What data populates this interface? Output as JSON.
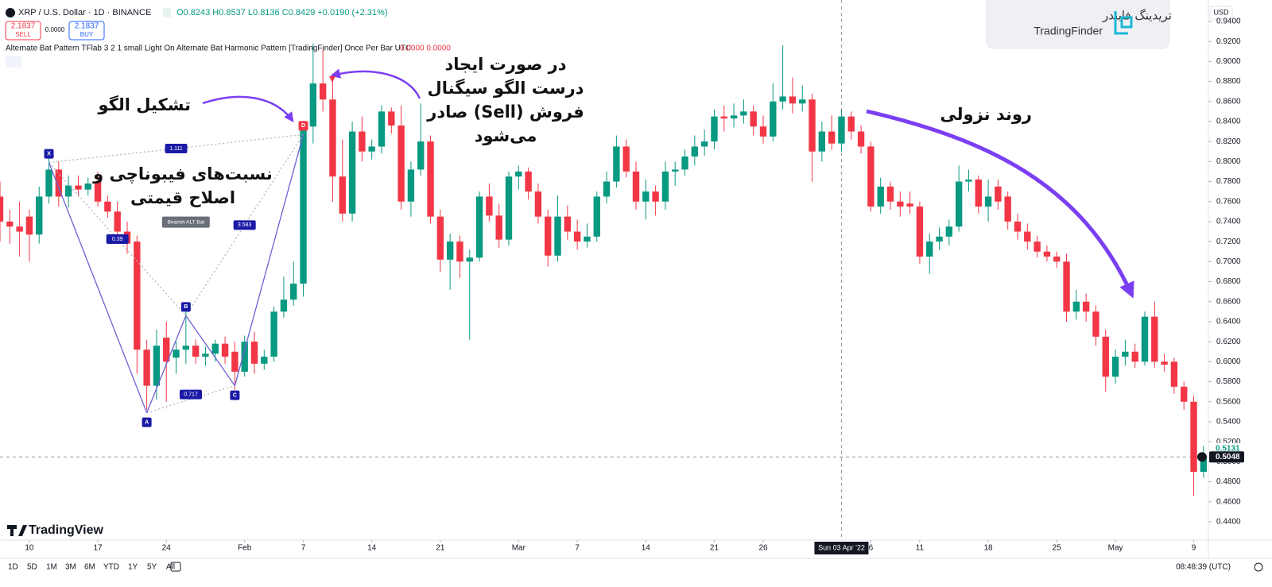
{
  "header": {
    "symbol": "XRP / U.S. Dollar · 1D · BINANCE",
    "ohlc": "O0.8243 H0.8537 L0.8136 C0.8429 +0.0190 (+2.31%)",
    "sell_price": "2.1837",
    "sell": "SELL",
    "spread": "0.0000",
    "buy_price": "2.1837",
    "buy": "BUY",
    "indicator": "Alternate Bat Pattern TFlab 3 2 1 small Light On Alternate Bat Harmonic Pattern [TradingFinder] Once Per Bar UTC",
    "indicator_values": "0.0000 0.0000"
  },
  "logo": {
    "persian": "تریدینگ فایندر",
    "latin": "TradingFinder"
  },
  "watermark": "TradingView",
  "annotations": [
    {
      "lines": [
        "تشکیل الگو"
      ]
    },
    {
      "lines": [
        "نسبت‌های فیبوناچی و",
        "اصلاح قیمتی"
      ]
    },
    {
      "lines": [
        "در صورت ایجاد",
        "درست الگو سیگنال",
        "فروش (Sell) صادر",
        "می‌شود"
      ]
    },
    {
      "lines": [
        "روند نزولی"
      ]
    }
  ],
  "toolbar": {
    "ranges": [
      "1D",
      "5D",
      "1M",
      "3M",
      "6M",
      "YTD",
      "1Y",
      "5Y",
      "All"
    ],
    "clock": "08:48:39 (UTC)"
  },
  "chart_data": {
    "type": "candlestick",
    "currency": "USD",
    "up_color": "#089981",
    "down_color": "#f23645",
    "grid": false,
    "xlim": [
      0,
      123.5
    ],
    "ylim": [
      0.4217,
      0.9614
    ],
    "xticks": [
      {
        "value": 3,
        "label": "10"
      },
      {
        "value": 10,
        "label": "17"
      },
      {
        "value": 17,
        "label": "24"
      },
      {
        "value": 25,
        "label": "Feb"
      },
      {
        "value": 31,
        "label": "7"
      },
      {
        "value": 38,
        "label": "14"
      },
      {
        "value": 45,
        "label": "21"
      },
      {
        "value": 53,
        "label": "Mar"
      },
      {
        "value": 59,
        "label": "7"
      },
      {
        "value": 66,
        "label": "14"
      },
      {
        "value": 73,
        "label": "21"
      },
      {
        "value": 78,
        "label": "26"
      },
      {
        "value": 89,
        "label": "6"
      },
      {
        "value": 94,
        "label": "11"
      },
      {
        "value": 101,
        "label": "18"
      },
      {
        "value": 108,
        "label": "25"
      },
      {
        "value": 114,
        "label": "May"
      },
      {
        "value": 122,
        "label": "9"
      }
    ],
    "yticks": [
      {
        "value": 0.44,
        "label": "0.4400"
      },
      {
        "value": 0.46,
        "label": "0.4600"
      },
      {
        "value": 0.48,
        "label": "0.4800"
      },
      {
        "value": 0.5,
        "label": "0.5000"
      },
      {
        "value": 0.52,
        "label": "0.5200"
      },
      {
        "value": 0.54,
        "label": "0.5400"
      },
      {
        "value": 0.56,
        "label": "0.5600"
      },
      {
        "value": 0.58,
        "label": "0.5800"
      },
      {
        "value": 0.6,
        "label": "0.6000"
      },
      {
        "value": 0.62,
        "label": "0.6200"
      },
      {
        "value": 0.64,
        "label": "0.6400"
      },
      {
        "value": 0.66,
        "label": "0.6600"
      },
      {
        "value": 0.68,
        "label": "0.6800"
      },
      {
        "value": 0.7,
        "label": "0.7000"
      },
      {
        "value": 0.72,
        "label": "0.7200"
      },
      {
        "value": 0.74,
        "label": "0.7400"
      },
      {
        "value": 0.76,
        "label": "0.7600"
      },
      {
        "value": 0.78,
        "label": "0.7800"
      },
      {
        "value": 0.8,
        "label": "0.8000"
      },
      {
        "value": 0.82,
        "label": "0.8200"
      },
      {
        "value": 0.84,
        "label": "0.8400"
      },
      {
        "value": 0.86,
        "label": "0.8600"
      },
      {
        "value": 0.88,
        "label": "0.8800"
      },
      {
        "value": 0.9,
        "label": "0.9000"
      },
      {
        "value": 0.92,
        "label": "0.9200"
      },
      {
        "value": 0.94,
        "label": "0.9400"
      }
    ],
    "crosshair": {
      "x": 86,
      "label": "Sun 03 Apr '22"
    },
    "prev_price": {
      "value": 0.5131,
      "label": "0.5131"
    },
    "last_price": {
      "value": 0.5048,
      "label": "0.5048"
    },
    "ohlc": [
      [
        0.765,
        0.78,
        0.72,
        0.74
      ],
      [
        0.74,
        0.752,
        0.718,
        0.735
      ],
      [
        0.735,
        0.76,
        0.705,
        0.73
      ],
      [
        0.745,
        0.752,
        0.7,
        0.727
      ],
      [
        0.727,
        0.775,
        0.718,
        0.765
      ],
      [
        0.765,
        0.812,
        0.758,
        0.792
      ],
      [
        0.792,
        0.8,
        0.755,
        0.765
      ],
      [
        0.765,
        0.786,
        0.754,
        0.776
      ],
      [
        0.776,
        0.786,
        0.765,
        0.772
      ],
      [
        0.772,
        0.784,
        0.766,
        0.778
      ],
      [
        0.78,
        0.79,
        0.755,
        0.76
      ],
      [
        0.76,
        0.766,
        0.744,
        0.75
      ],
      [
        0.75,
        0.76,
        0.718,
        0.73
      ],
      [
        0.73,
        0.74,
        0.708,
        0.718
      ],
      [
        0.72,
        0.726,
        0.588,
        0.612
      ],
      [
        0.612,
        0.622,
        0.552,
        0.576
      ],
      [
        0.576,
        0.632,
        0.562,
        0.616
      ],
      [
        0.624,
        0.64,
        0.56,
        0.6
      ],
      [
        0.604,
        0.62,
        0.588,
        0.612
      ],
      [
        0.612,
        0.652,
        0.598,
        0.616
      ],
      [
        0.616,
        0.622,
        0.598,
        0.605
      ],
      [
        0.605,
        0.615,
        0.596,
        0.608
      ],
      [
        0.608,
        0.622,
        0.6,
        0.618
      ],
      [
        0.618,
        0.625,
        0.598,
        0.605
      ],
      [
        0.61,
        0.62,
        0.572,
        0.59
      ],
      [
        0.59,
        0.626,
        0.585,
        0.62
      ],
      [
        0.62,
        0.63,
        0.588,
        0.598
      ],
      [
        0.598,
        0.612,
        0.592,
        0.605
      ],
      [
        0.605,
        0.655,
        0.6,
        0.65
      ],
      [
        0.65,
        0.685,
        0.644,
        0.662
      ],
      [
        0.662,
        0.7,
        0.656,
        0.678
      ],
      [
        0.678,
        0.84,
        0.665,
        0.835
      ],
      [
        0.835,
        0.918,
        0.818,
        0.878
      ],
      [
        0.878,
        0.912,
        0.85,
        0.862
      ],
      [
        0.862,
        0.888,
        0.76,
        0.785
      ],
      [
        0.785,
        0.822,
        0.74,
        0.748
      ],
      [
        0.748,
        0.84,
        0.74,
        0.83
      ],
      [
        0.83,
        0.845,
        0.8,
        0.81
      ],
      [
        0.81,
        0.822,
        0.802,
        0.815
      ],
      [
        0.815,
        0.856,
        0.808,
        0.85
      ],
      [
        0.85,
        0.854,
        0.828,
        0.836
      ],
      [
        0.836,
        0.856,
        0.752,
        0.76
      ],
      [
        0.76,
        0.8,
        0.745,
        0.792
      ],
      [
        0.792,
        0.858,
        0.786,
        0.82
      ],
      [
        0.82,
        0.826,
        0.738,
        0.745
      ],
      [
        0.745,
        0.752,
        0.69,
        0.702
      ],
      [
        0.702,
        0.728,
        0.672,
        0.72
      ],
      [
        0.72,
        0.726,
        0.684,
        0.7
      ],
      [
        0.7,
        0.712,
        0.622,
        0.704
      ],
      [
        0.704,
        0.77,
        0.7,
        0.765
      ],
      [
        0.765,
        0.778,
        0.74,
        0.746
      ],
      [
        0.746,
        0.758,
        0.714,
        0.722
      ],
      [
        0.722,
        0.79,
        0.716,
        0.785
      ],
      [
        0.785,
        0.796,
        0.772,
        0.79
      ],
      [
        0.79,
        0.794,
        0.762,
        0.77
      ],
      [
        0.77,
        0.778,
        0.738,
        0.745
      ],
      [
        0.745,
        0.752,
        0.695,
        0.706
      ],
      [
        0.706,
        0.766,
        0.7,
        0.745
      ],
      [
        0.745,
        0.756,
        0.722,
        0.73
      ],
      [
        0.73,
        0.742,
        0.712,
        0.72
      ],
      [
        0.72,
        0.738,
        0.714,
        0.725
      ],
      [
        0.725,
        0.77,
        0.72,
        0.765
      ],
      [
        0.765,
        0.79,
        0.758,
        0.78
      ],
      [
        0.78,
        0.826,
        0.774,
        0.815
      ],
      [
        0.815,
        0.822,
        0.784,
        0.79
      ],
      [
        0.79,
        0.8,
        0.752,
        0.76
      ],
      [
        0.76,
        0.782,
        0.742,
        0.77
      ],
      [
        0.77,
        0.776,
        0.746,
        0.76
      ],
      [
        0.76,
        0.8,
        0.752,
        0.79
      ],
      [
        0.79,
        0.8,
        0.776,
        0.792
      ],
      [
        0.792,
        0.812,
        0.786,
        0.805
      ],
      [
        0.805,
        0.826,
        0.796,
        0.815
      ],
      [
        0.815,
        0.832,
        0.806,
        0.82
      ],
      [
        0.82,
        0.852,
        0.812,
        0.845
      ],
      [
        0.845,
        0.856,
        0.83,
        0.843
      ],
      [
        0.843,
        0.858,
        0.834,
        0.846
      ],
      [
        0.846,
        0.862,
        0.838,
        0.85
      ],
      [
        0.85,
        0.856,
        0.826,
        0.835
      ],
      [
        0.835,
        0.846,
        0.818,
        0.825
      ],
      [
        0.825,
        0.878,
        0.82,
        0.86
      ],
      [
        0.86,
        0.916,
        0.852,
        0.865
      ],
      [
        0.865,
        0.884,
        0.848,
        0.858
      ],
      [
        0.858,
        0.876,
        0.85,
        0.862
      ],
      [
        0.862,
        0.868,
        0.78,
        0.81
      ],
      [
        0.81,
        0.84,
        0.8,
        0.83
      ],
      [
        0.83,
        0.846,
        0.812,
        0.818
      ],
      [
        0.818,
        0.852,
        0.81,
        0.845
      ],
      [
        0.845,
        0.85,
        0.822,
        0.83
      ],
      [
        0.83,
        0.836,
        0.808,
        0.815
      ],
      [
        0.815,
        0.82,
        0.75,
        0.755
      ],
      [
        0.755,
        0.784,
        0.748,
        0.775
      ],
      [
        0.775,
        0.78,
        0.752,
        0.76
      ],
      [
        0.76,
        0.77,
        0.745,
        0.755
      ],
      [
        0.758,
        0.77,
        0.748,
        0.755
      ],
      [
        0.755,
        0.76,
        0.698,
        0.705
      ],
      [
        0.705,
        0.728,
        0.688,
        0.72
      ],
      [
        0.72,
        0.734,
        0.712,
        0.725
      ],
      [
        0.725,
        0.742,
        0.716,
        0.735
      ],
      [
        0.735,
        0.796,
        0.73,
        0.78
      ],
      [
        0.78,
        0.792,
        0.77,
        0.782
      ],
      [
        0.782,
        0.786,
        0.748,
        0.755
      ],
      [
        0.755,
        0.782,
        0.74,
        0.765
      ],
      [
        0.775,
        0.782,
        0.752,
        0.76
      ],
      [
        0.765,
        0.77,
        0.732,
        0.74
      ],
      [
        0.74,
        0.748,
        0.722,
        0.73
      ],
      [
        0.73,
        0.738,
        0.712,
        0.72
      ],
      [
        0.72,
        0.726,
        0.704,
        0.71
      ],
      [
        0.71,
        0.716,
        0.7,
        0.705
      ],
      [
        0.705,
        0.71,
        0.694,
        0.7
      ],
      [
        0.7,
        0.708,
        0.64,
        0.65
      ],
      [
        0.65,
        0.672,
        0.642,
        0.66
      ],
      [
        0.66,
        0.668,
        0.64,
        0.65
      ],
      [
        0.65,
        0.656,
        0.616,
        0.625
      ],
      [
        0.625,
        0.632,
        0.57,
        0.585
      ],
      [
        0.585,
        0.612,
        0.578,
        0.605
      ],
      [
        0.605,
        0.622,
        0.596,
        0.61
      ],
      [
        0.61,
        0.618,
        0.594,
        0.6
      ],
      [
        0.6,
        0.65,
        0.596,
        0.645
      ],
      [
        0.645,
        0.66,
        0.594,
        0.6
      ],
      [
        0.6,
        0.608,
        0.59,
        0.597
      ],
      [
        0.6,
        0.604,
        0.568,
        0.575
      ],
      [
        0.575,
        0.58,
        0.552,
        0.56
      ],
      [
        0.56,
        0.566,
        0.466,
        0.49
      ],
      [
        0.49,
        0.516,
        0.484,
        0.5048
      ]
    ],
    "pattern": {
      "name": "Bearish ALT Bat",
      "color": "#6a63d4",
      "points": [
        {
          "label": "X",
          "x": 5,
          "y": 0.799
        },
        {
          "label": "A",
          "x": 15,
          "y": 0.549
        },
        {
          "label": "B",
          "x": 19,
          "y": 0.646
        },
        {
          "label": "C",
          "x": 24,
          "y": 0.576
        },
        {
          "label": "D",
          "x": 31,
          "y": 0.827
        }
      ],
      "ratios": [
        "1.111",
        "0.39",
        "3.583",
        "0.717"
      ]
    }
  }
}
